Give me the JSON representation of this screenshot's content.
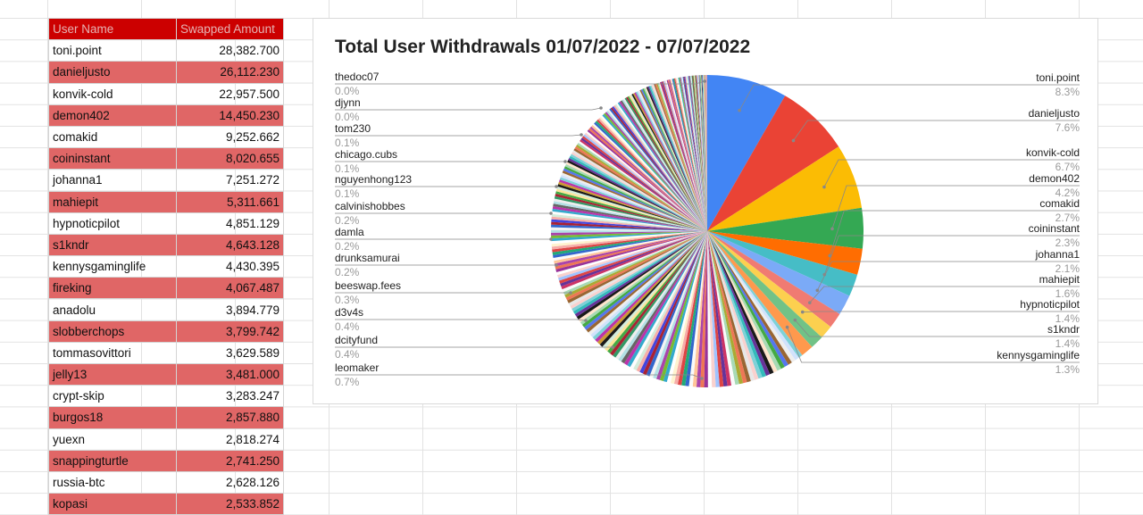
{
  "sheet": {
    "headers": [
      "User Name",
      "Swapped Amount"
    ],
    "rows": [
      {
        "name": "toni.point",
        "amount": "28,382.700"
      },
      {
        "name": "danieljusto",
        "amount": "26,112.230"
      },
      {
        "name": "konvik-cold",
        "amount": "22,957.500"
      },
      {
        "name": "demon402",
        "amount": "14,450.230"
      },
      {
        "name": "comakid",
        "amount": "9,252.662"
      },
      {
        "name": "coininstant",
        "amount": "8,020.655"
      },
      {
        "name": "johanna1",
        "amount": "7,251.272"
      },
      {
        "name": "mahiepit",
        "amount": "5,311.661"
      },
      {
        "name": "hypnoticpilot",
        "amount": "4,851.129"
      },
      {
        "name": "s1kndr",
        "amount": "4,643.128"
      },
      {
        "name": "kennysgaminglife",
        "amount": "4,430.395"
      },
      {
        "name": "fireking",
        "amount": "4,067.487"
      },
      {
        "name": "anadolu",
        "amount": "3,894.779"
      },
      {
        "name": "slobberchops",
        "amount": "3,799.742"
      },
      {
        "name": "tommasovittori",
        "amount": "3,629.589"
      },
      {
        "name": "jelly13",
        "amount": "3,481.000"
      },
      {
        "name": "crypt-skip",
        "amount": "3,283.247"
      },
      {
        "name": "burgos18",
        "amount": "2,857.880"
      },
      {
        "name": "yuexn",
        "amount": "2,818.274"
      },
      {
        "name": "snappingturtle",
        "amount": "2,741.250"
      },
      {
        "name": "russia-btc",
        "amount": "2,628.126"
      },
      {
        "name": "kopasi",
        "amount": "2,533.852"
      }
    ]
  },
  "chart_data": {
    "type": "pie",
    "title": "Total User Withdrawals 01/07/2022 - 07/07/2022",
    "slices": [
      {
        "name": "toni.point",
        "pct": 8.3,
        "color": "#4285f4"
      },
      {
        "name": "danieljusto",
        "pct": 7.6,
        "color": "#ea4335"
      },
      {
        "name": "konvik-cold",
        "pct": 6.7,
        "color": "#fbbc04"
      },
      {
        "name": "demon402",
        "pct": 4.2,
        "color": "#34a853"
      },
      {
        "name": "comakid",
        "pct": 2.7,
        "color": "#ff6d01"
      },
      {
        "name": "coininstant",
        "pct": 2.3,
        "color": "#46bdc6"
      },
      {
        "name": "johanna1",
        "pct": 2.1,
        "color": "#7baaf7"
      },
      {
        "name": "mahiepit",
        "pct": 1.6,
        "color": "#f07b72"
      },
      {
        "name": "hypnoticpilot",
        "pct": 1.4,
        "color": "#fcd04f"
      },
      {
        "name": "s1kndr",
        "pct": 1.4,
        "color": "#71c287"
      },
      {
        "name": "kennysgaminglife",
        "pct": 1.3,
        "color": "#ff994d"
      }
    ],
    "left_labels": [
      {
        "name": "thedoc07",
        "pct": "0.0%"
      },
      {
        "name": "djynn",
        "pct": "0.0%"
      },
      {
        "name": "tom230",
        "pct": "0.1%"
      },
      {
        "name": "chicago.cubs",
        "pct": "0.1%"
      },
      {
        "name": "nguyenhong123",
        "pct": "0.1%"
      },
      {
        "name": "calvinishobbes",
        "pct": "0.2%"
      },
      {
        "name": "damla",
        "pct": "0.2%"
      },
      {
        "name": "drunksamurai",
        "pct": "0.2%"
      },
      {
        "name": "beeswap.fees",
        "pct": "0.3%"
      },
      {
        "name": "d3v4s",
        "pct": "0.4%"
      },
      {
        "name": "dcityfund",
        "pct": "0.4%"
      },
      {
        "name": "leomaker",
        "pct": "0.7%"
      }
    ],
    "other_colors": [
      "#7ed1d7",
      "#a0c3ff",
      "#f6aea9",
      "#fde49b",
      "#a8dab5",
      "#ffc599",
      "#b3e0e5",
      "#d1e2fc",
      "#f9d1ce",
      "#fff3cf",
      "#d4ecda",
      "#ffe4cc",
      "#fafafa",
      "#f4f4f4",
      "#eeeeee",
      "#e7e7e7",
      "#ffffff",
      "#fdfdfd",
      "#1a1a1a",
      "#cc3366",
      "#3366cc",
      "#339966",
      "#996633",
      "#993399",
      "#33aacc",
      "#cc9933",
      "#663399",
      "#22aa77",
      "#aa2233",
      "#5577ee",
      "#ee7755",
      "#77bb33",
      "#bb33aa",
      "#33bbbb",
      "#dd4444",
      "#4444dd",
      "#44aa44",
      "#aaaa33",
      "#aa44aa",
      "#666666"
    ]
  }
}
